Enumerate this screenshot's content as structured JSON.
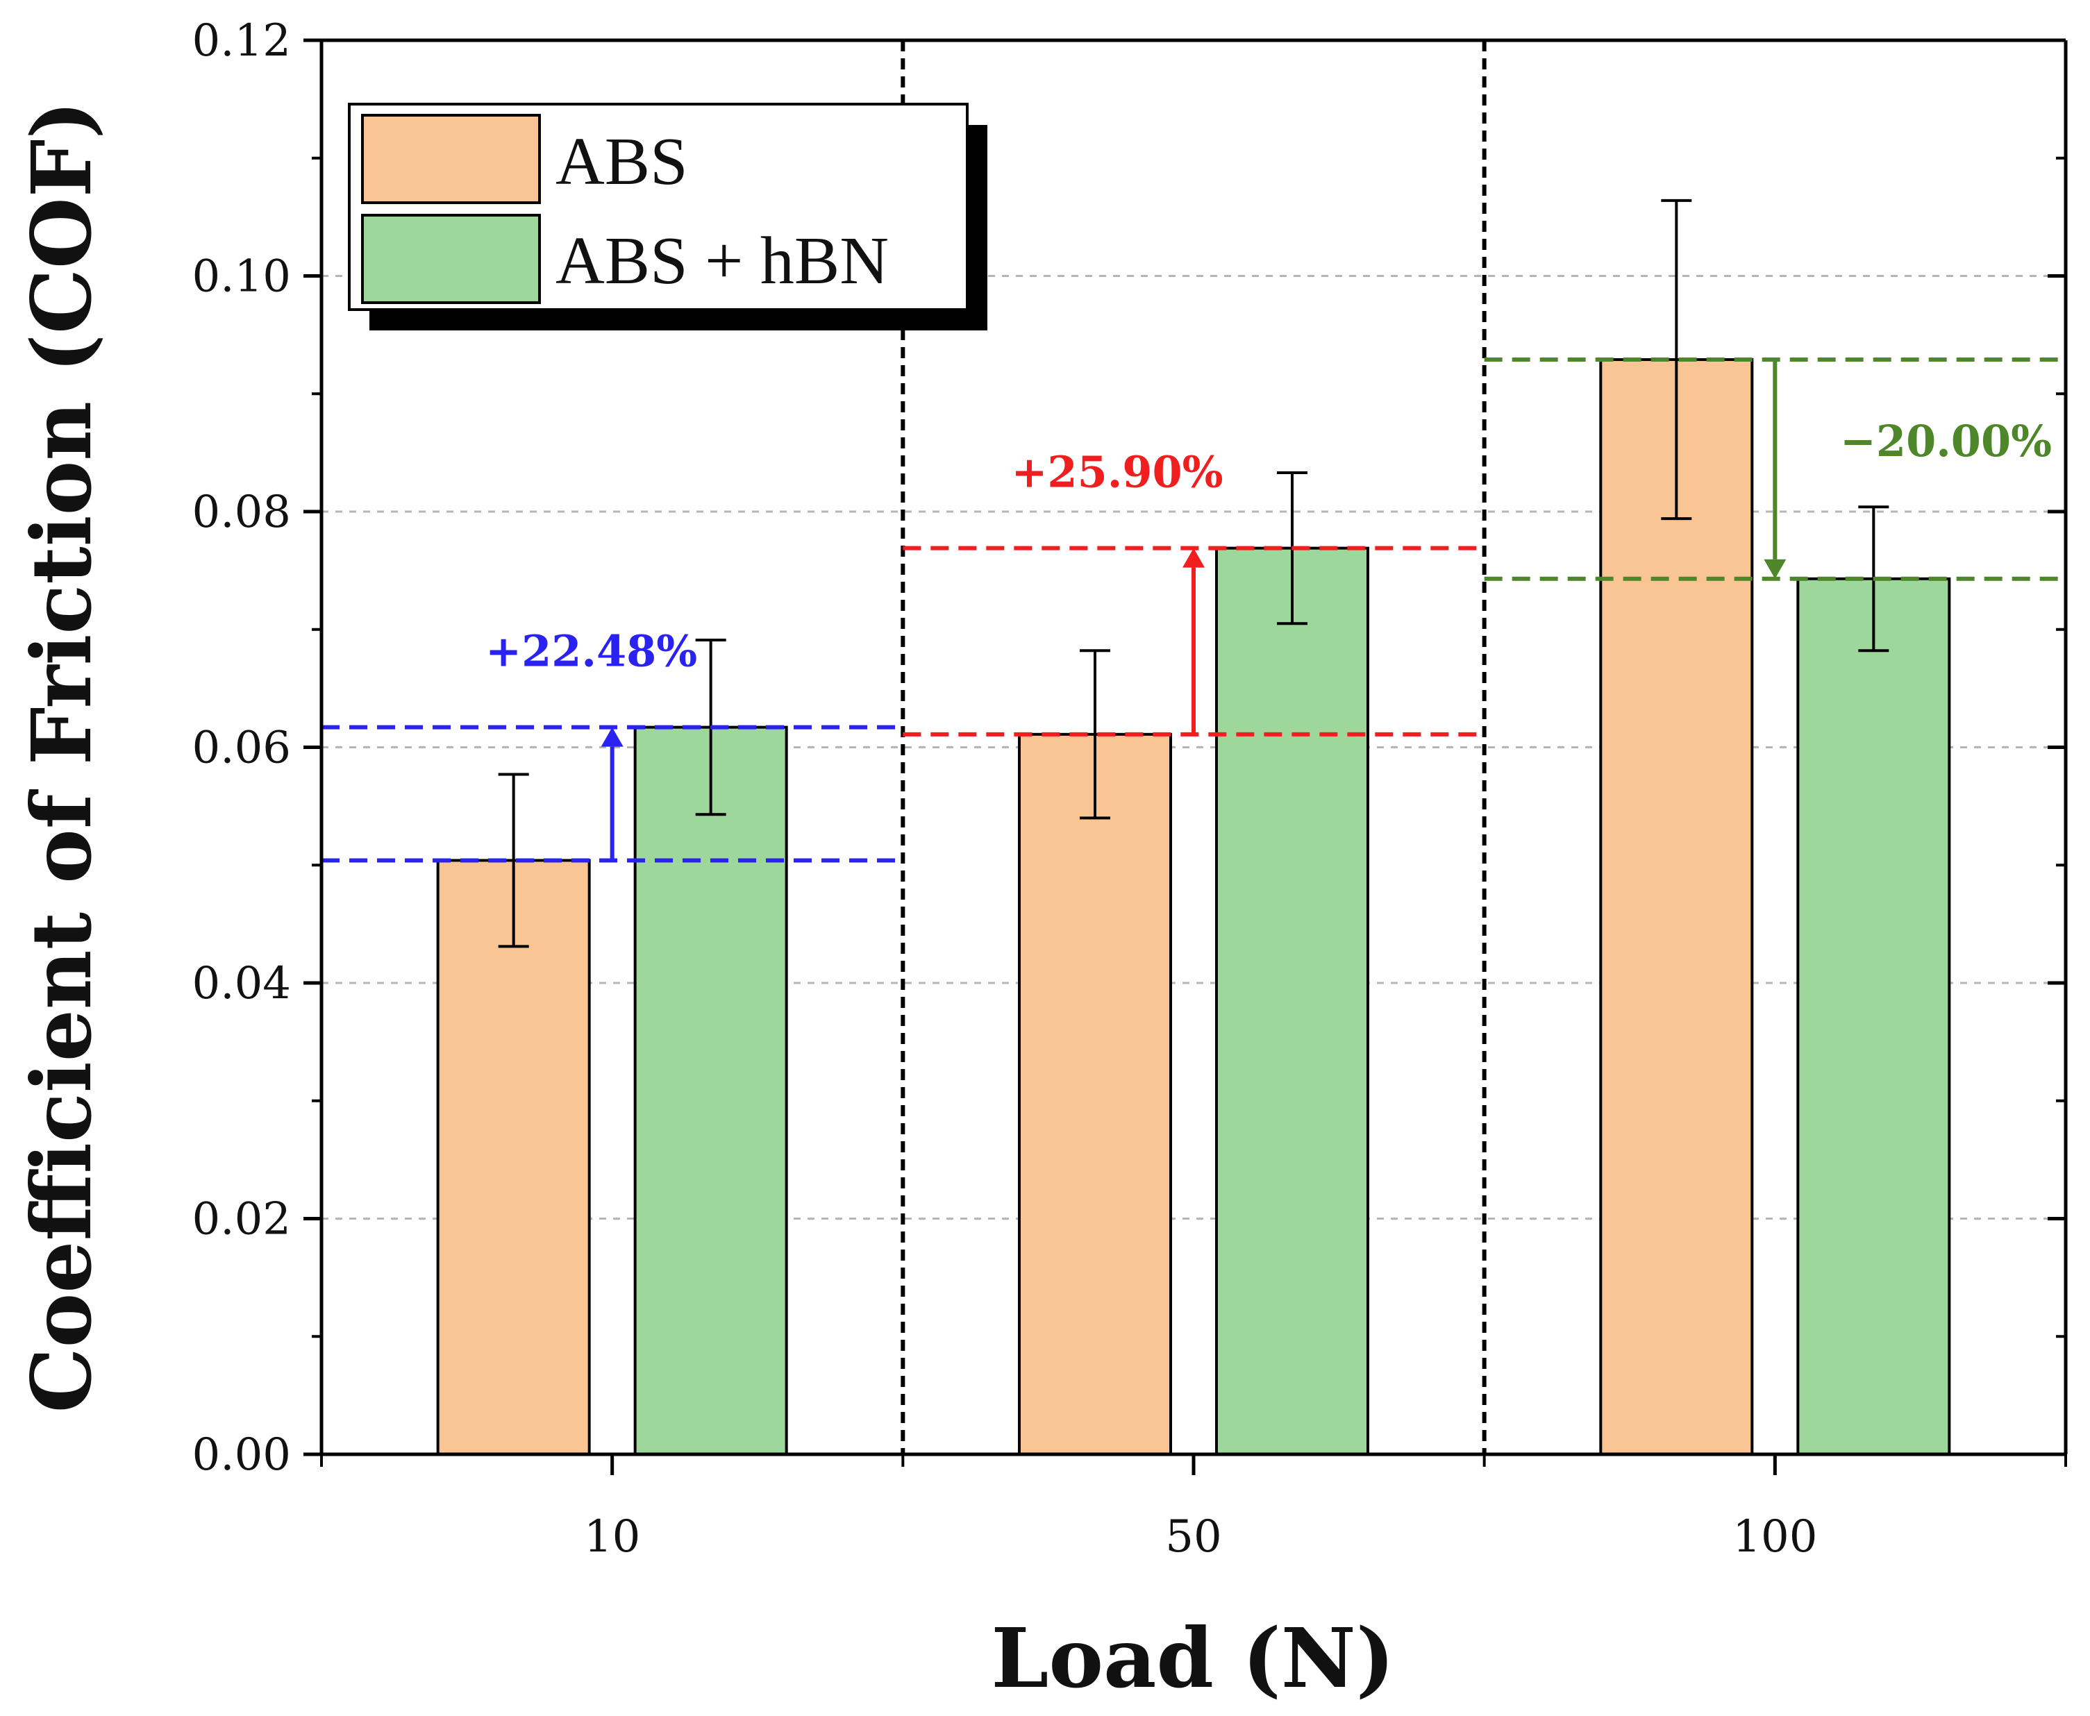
{
  "chart_data": {
    "type": "bar",
    "xlabel": "Load (N)",
    "ylabel": "Coefficient of Friction (COF)",
    "ylim": [
      0,
      0.12
    ],
    "y_ticks": [
      "0.00",
      "0.02",
      "0.04",
      "0.06",
      "0.08",
      "0.10",
      "0.12"
    ],
    "y_tick_values": [
      0,
      0.02,
      0.04,
      0.06,
      0.08,
      0.1,
      0.12
    ],
    "categories": [
      "10",
      "50",
      "100"
    ],
    "grid": true,
    "legend_position": "top-left",
    "series": [
      {
        "name": "ABS",
        "color": "#F9C595",
        "values": [
          0.0504,
          0.0611,
          0.0929
        ],
        "errors": [
          0.0073,
          0.0071,
          0.0135
        ]
      },
      {
        "name": "ABS + hBN",
        "color": "#9ED79B",
        "values": [
          0.0617,
          0.0769,
          0.0743
        ],
        "errors": [
          0.0074,
          0.0064,
          0.0061
        ]
      }
    ],
    "annotations": [
      {
        "category": "10",
        "label": "+22.48%",
        "color": "#2A22F0",
        "from": 0.0504,
        "to": 0.0617,
        "direction": "up"
      },
      {
        "category": "50",
        "label": "+25.90%",
        "color": "#F01E1E",
        "from": 0.0611,
        "to": 0.0769,
        "direction": "up"
      },
      {
        "category": "100",
        "label": "−20.00%",
        "color": "#4E862A",
        "from": 0.0929,
        "to": 0.0743,
        "direction": "down"
      }
    ]
  }
}
